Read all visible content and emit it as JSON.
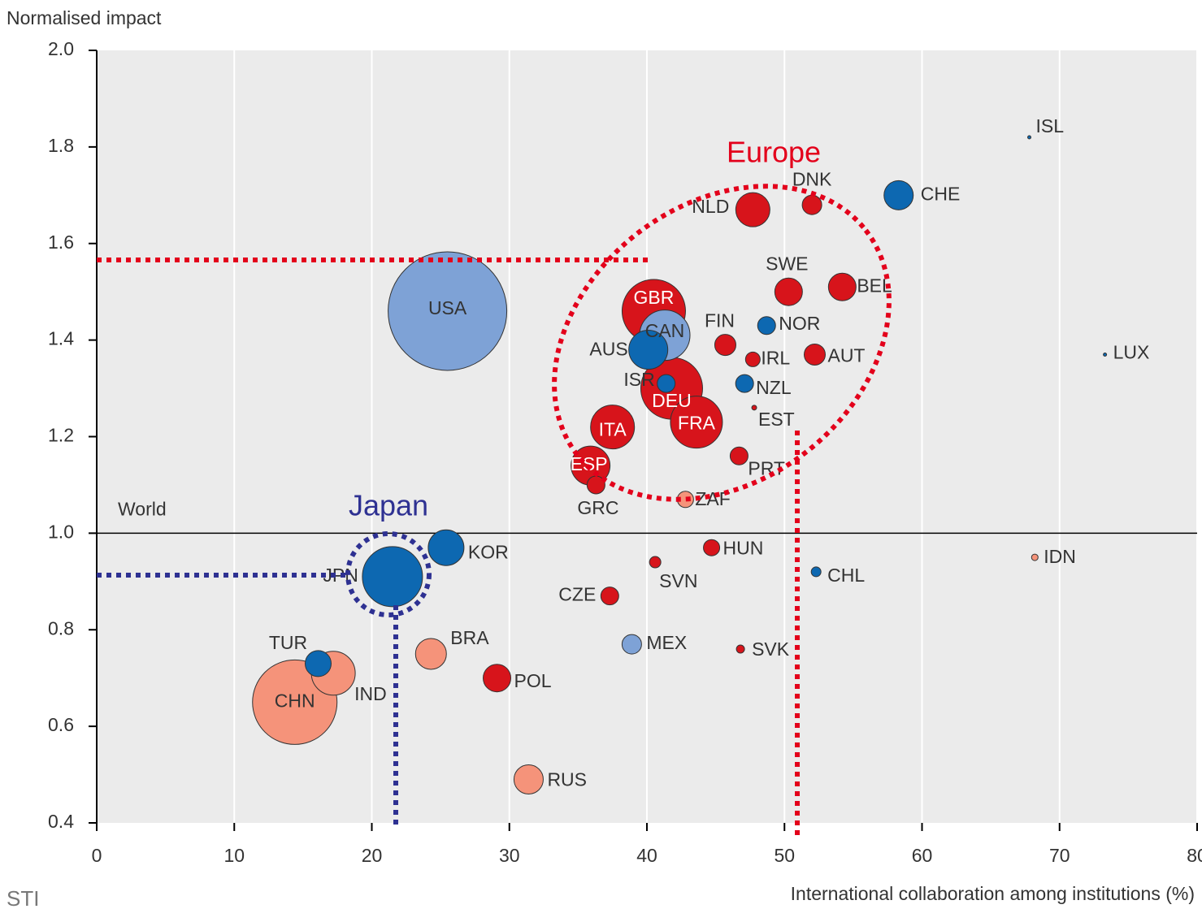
{
  "chart_data": {
    "type": "scatter",
    "y_label": "Normalised impact",
    "x_label": "International collaboration among institutions (%)",
    "source": "STI",
    "annotations": [
      "Europe",
      "Japan"
    ],
    "reference_line": {
      "value": 1.0,
      "label": "World"
    },
    "xlim": [
      0,
      80
    ],
    "ylim": [
      0.4,
      2.0
    ],
    "xticks": [
      0,
      10,
      20,
      30,
      40,
      50,
      60,
      70,
      80
    ],
    "yticks": [
      0.4,
      0.6,
      0.8,
      {
        "value": 1.0,
        "label": "1.0"
      },
      1.2,
      1.4,
      1.6,
      1.8,
      {
        "value": 2.0,
        "label": "2.0"
      }
    ],
    "grid": true,
    "labels": [
      "USA",
      "CHN",
      "IND",
      "TUR",
      "JPN",
      "KOR",
      "BRA",
      "POL",
      "RUS",
      "CZE",
      "MEX",
      "SVN",
      "HUN",
      "SVK",
      "CHL",
      "IDN",
      "ZAF",
      "GRC",
      "ESP",
      "ITA",
      "PRT",
      "EST",
      "FRA",
      "DEU",
      "ISR",
      "AUS",
      "CAN",
      "GBR",
      "FIN",
      "IRL",
      "NZL",
      "NOR",
      "AUT",
      "SWE",
      "BEL",
      "NLD",
      "DNK",
      "CHE",
      "ISL",
      "LUX"
    ],
    "x": [
      25.5,
      14.4,
      17.2,
      16.1,
      21.5,
      25.4,
      24.3,
      29.1,
      31.4,
      37.3,
      38.9,
      40.6,
      44.7,
      46.8,
      52.3,
      68.2,
      42.8,
      36.3,
      35.9,
      37.5,
      46.7,
      47.8,
      43.6,
      41.8,
      41.4,
      40.1,
      41.3,
      40.5,
      45.7,
      47.7,
      47.1,
      48.7,
      52.2,
      50.3,
      54.2,
      47.7,
      52.0,
      58.3,
      67.8,
      73.3
    ],
    "values": [
      1.46,
      0.65,
      0.71,
      0.73,
      0.91,
      0.97,
      0.75,
      0.7,
      0.49,
      0.87,
      0.77,
      0.94,
      0.97,
      0.76,
      0.92,
      0.95,
      1.07,
      1.1,
      1.14,
      1.22,
      1.16,
      1.26,
      1.23,
      1.3,
      1.31,
      1.38,
      1.41,
      1.46,
      1.39,
      1.36,
      1.31,
      1.43,
      1.37,
      1.5,
      1.51,
      1.67,
      1.68,
      1.7,
      1.82,
      1.37
    ],
    "sizes": [
      73,
      52,
      27,
      16,
      37,
      22,
      19,
      17,
      18,
      11,
      12,
      7,
      10,
      5,
      6,
      4,
      10,
      11,
      24,
      27,
      11,
      3,
      32,
      38,
      11,
      24,
      31,
      39,
      13,
      9,
      11,
      11,
      13,
      17,
      17,
      21,
      12,
      18,
      2,
      2
    ],
    "colors": [
      "#7ea2d6",
      "#f5937a",
      "#f5937a",
      "#0d68b1",
      "#0d68b1",
      "#0d68b1",
      "#f5937a",
      "#d7141b",
      "#f5937a",
      "#d7141b",
      "#7ea2d6",
      "#d7141b",
      "#d7141b",
      "#d7141b",
      "#0d68b1",
      "#f5937a",
      "#f5937a",
      "#d7141b",
      "#d7141b",
      "#d7141b",
      "#d7141b",
      "#d7141b",
      "#d7141b",
      "#d7141b",
      "#0d68b1",
      "#0d68b1",
      "#7ea2d6",
      "#d7141b",
      "#d7141b",
      "#d7141b",
      "#0d68b1",
      "#0d68b1",
      "#d7141b",
      "#d7141b",
      "#d7141b",
      "#d7141b",
      "#d7141b",
      "#0d68b1",
      "#0d68b1",
      "#0d68b1"
    ]
  }
}
